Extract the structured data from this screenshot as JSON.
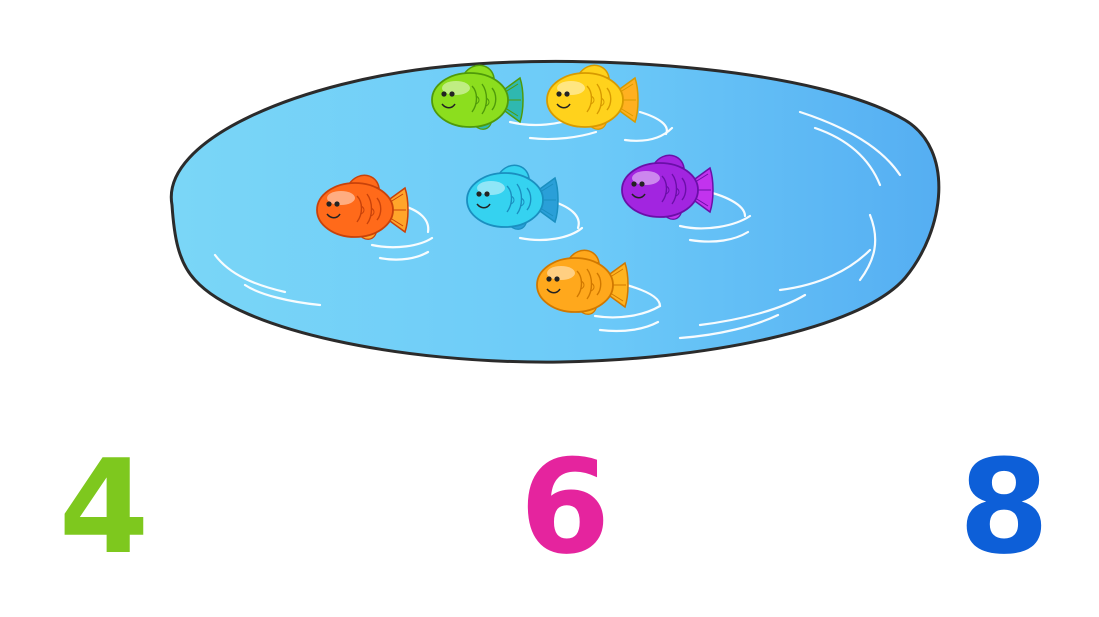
{
  "pond": {
    "fish": [
      {
        "id": "green",
        "color": "#8cde1e",
        "dark": "#4f9a0a",
        "fin": "#2fb8b0"
      },
      {
        "id": "yellow",
        "color": "#ffd21c",
        "dark": "#d79a00",
        "fin": "#ffb020"
      },
      {
        "id": "orange-red",
        "color": "#ff6a1a",
        "dark": "#c8420a",
        "fin": "#ffa52a"
      },
      {
        "id": "cyan",
        "color": "#35d2f0",
        "dark": "#1a8fc0",
        "fin": "#2a9fd8"
      },
      {
        "id": "purple",
        "color": "#a225e0",
        "dark": "#6a0fa8",
        "fin": "#c233ee"
      },
      {
        "id": "orange",
        "color": "#ffa81c",
        "dark": "#d07800",
        "fin": "#ffb420"
      }
    ]
  },
  "answers": [
    {
      "label": "4",
      "color": "#7ec81e"
    },
    {
      "label": "6",
      "color": "#e5249e"
    },
    {
      "label": "8",
      "color": "#0d5fd8"
    }
  ]
}
